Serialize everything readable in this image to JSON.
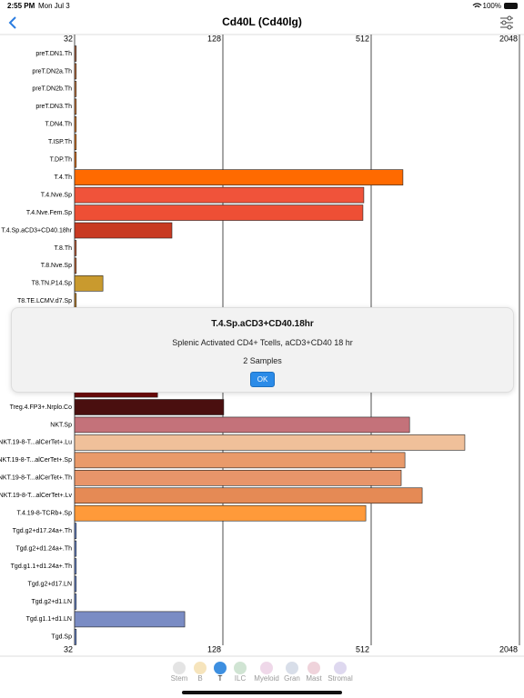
{
  "status": {
    "time": "2:55 PM",
    "date": "Mon Jul 3",
    "battery": "100%"
  },
  "nav": {
    "title": "Cd40L (Cd40lg)"
  },
  "chart_data": {
    "type": "bar",
    "orientation": "horizontal",
    "log_scale": true,
    "log_base": 2,
    "grid": true,
    "categories": [
      "preT.DN1.Th",
      "preT.DN2a.Th",
      "preT.DN2b.Th",
      "preT.DN3.Th",
      "T.DN4.Th",
      "T.ISP.Th",
      "T.DP.Th",
      "T.4.Th",
      "T.4.Nve.Sp",
      "T.4.Nve.Fem.Sp",
      "T.4.Sp.aCD3+CD40.18hr",
      "T.8.Th",
      "T.8.Nve.Sp",
      "T8.TN.P14.Sp",
      "T8.TE.LCMV.d7.Sp",
      null,
      null,
      null,
      null,
      null,
      "Treg.4.FP3+.Nrplo.Co",
      "NKT.Sp",
      "NKT.19-8-T...alCerTet+.Lu",
      "NKT.19-8-T...alCerTet+.Sp",
      "NKT.19-8-T...alCerTet+.Th",
      "NKT.19-8-T...alCerTet+.Lv",
      "T.4.19-8-TCRb+.Sp",
      "Tgd.g2+d17.24a+.Th",
      "Tgd.g2+d1.24a+.Th",
      "Tgd.g1.1+d1.24a+.Th",
      "Tgd.g2+d17.LN",
      "Tgd.g2+d1.LN",
      "Tgd.g1.1+d1.LN",
      "Tgd.Sp"
    ],
    "values": [
      32.5,
      32.5,
      32.5,
      32.5,
      32.5,
      32.5,
      32.5,
      689,
      478,
      474,
      79.5,
      32.5,
      32.5,
      41.7,
      32.5,
      null,
      null,
      null,
      null,
      69.5,
      129,
      733,
      1229,
      702,
      678,
      825,
      487,
      32.5,
      32.5,
      32.5,
      32.5,
      32.5,
      89.6,
      32.5
    ],
    "colors": [
      "#b06a48",
      "#c0703e",
      "#c97a40",
      "#d07a38",
      "#d97b2a",
      "#e07a22",
      "#e8761a",
      "#ff6a00",
      "#f0533a",
      "#ee4f35",
      "#c83a22",
      "#c7603a",
      "#c76a3a",
      "#c99a2e",
      "#c78a30",
      null,
      null,
      null,
      null,
      "#6b0a0a",
      "#4a0f0f",
      "#c4727a",
      "#f0c09a",
      "#e99a6a",
      "#e8956a",
      "#e58a55",
      "#ff9a3a",
      "#6a8ad0",
      "#6a8ad0",
      "#6a8ad0",
      "#6a8ad0",
      "#6a8ad0",
      "#7a8cc4",
      "#6a8ad0"
    ],
    "xlim": [
      32,
      2048
    ],
    "xticks": [
      32,
      128,
      512,
      2048
    ]
  },
  "popup": {
    "title": "T.4.Sp.aCD3+CD40.18hr",
    "description": "Splenic Activated CD4+ Tcells, aCD3+CD40 18 hr",
    "samples": "2 Samples",
    "button": "OK"
  },
  "tabs": [
    {
      "label": "Stem",
      "color": "#d8d8d8"
    },
    {
      "label": "B",
      "color": "#f2d9a0"
    },
    {
      "label": "T",
      "color": "#3d8fe0"
    },
    {
      "label": "ILC",
      "color": "#bcd8c0"
    },
    {
      "label": "Myeloid",
      "color": "#e8c8e0"
    },
    {
      "label": "Gran",
      "color": "#c8d0e0"
    },
    {
      "label": "Mast",
      "color": "#e8c0cc"
    },
    {
      "label": "Stromal",
      "color": "#d0c8e8"
    }
  ]
}
